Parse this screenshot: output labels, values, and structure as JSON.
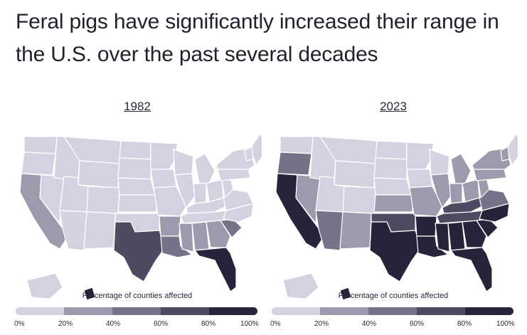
{
  "title": "Feral pigs have significantly increased their range in the U.S. over the past several decades",
  "colors": {
    "scale": [
      "#d4d2e0",
      "#9d9aae",
      "#75728a",
      "#4d4a62",
      "#26233a"
    ],
    "border": "#ffffff"
  },
  "legend": {
    "label": "Percentage of counties affected",
    "ticks": [
      "0%",
      "20%",
      "40%",
      "60%",
      "80%",
      "100%"
    ]
  },
  "maps": [
    {
      "year": "1982",
      "states": {
        "CA": 1,
        "TX": 3,
        "FL": 4,
        "LA": 2,
        "MS": 1,
        "AL": 1,
        "GA": 1,
        "SC": 2,
        "AR": 1,
        "NC": 0,
        "TN": 0,
        "HI": 4
      }
    },
    {
      "year": "2023",
      "states": {
        "CA": 4,
        "OR": 2,
        "NV": 1,
        "AZ": 2,
        "NM": 1,
        "TX": 4,
        "OK": 3,
        "KS": 1,
        "MO": 1,
        "AR": 4,
        "LA": 4,
        "MS": 4,
        "AL": 4,
        "GA": 4,
        "FL": 4,
        "SC": 4,
        "NC": 4,
        "TN": 3,
        "KY": 3,
        "VA": 2,
        "WV": 1,
        "OH": 1,
        "IN": 1,
        "IL": 1,
        "MI": 1,
        "PA": 1,
        "NY": 1,
        "NH": 1,
        "HI": 4
      }
    }
  ]
}
